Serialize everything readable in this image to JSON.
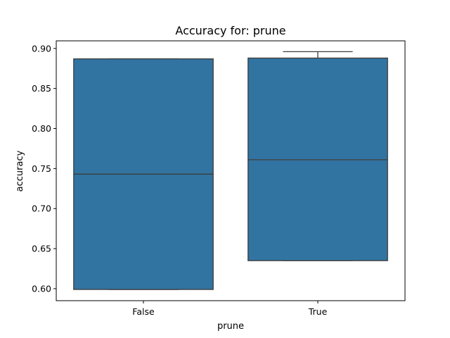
{
  "chart_data": {
    "type": "box",
    "title": "Accuracy for: prune",
    "xlabel": "prune",
    "ylabel": "accuracy",
    "categories": [
      "False",
      "True"
    ],
    "boxes": [
      {
        "category": "False",
        "whisker_low": 0.599,
        "q1": 0.599,
        "median": 0.743,
        "q3": 0.887,
        "whisker_high": 0.887
      },
      {
        "category": "True",
        "whisker_low": 0.635,
        "q1": 0.635,
        "median": 0.761,
        "q3": 0.888,
        "whisker_high": 0.896
      }
    ],
    "y_ticks": [
      0.6,
      0.65,
      0.7,
      0.75,
      0.8,
      0.85,
      0.9
    ],
    "ylim": [
      0.585,
      0.9095
    ],
    "box_color": "#3274a1",
    "line_color": "#3c3c3c",
    "grid": false
  }
}
